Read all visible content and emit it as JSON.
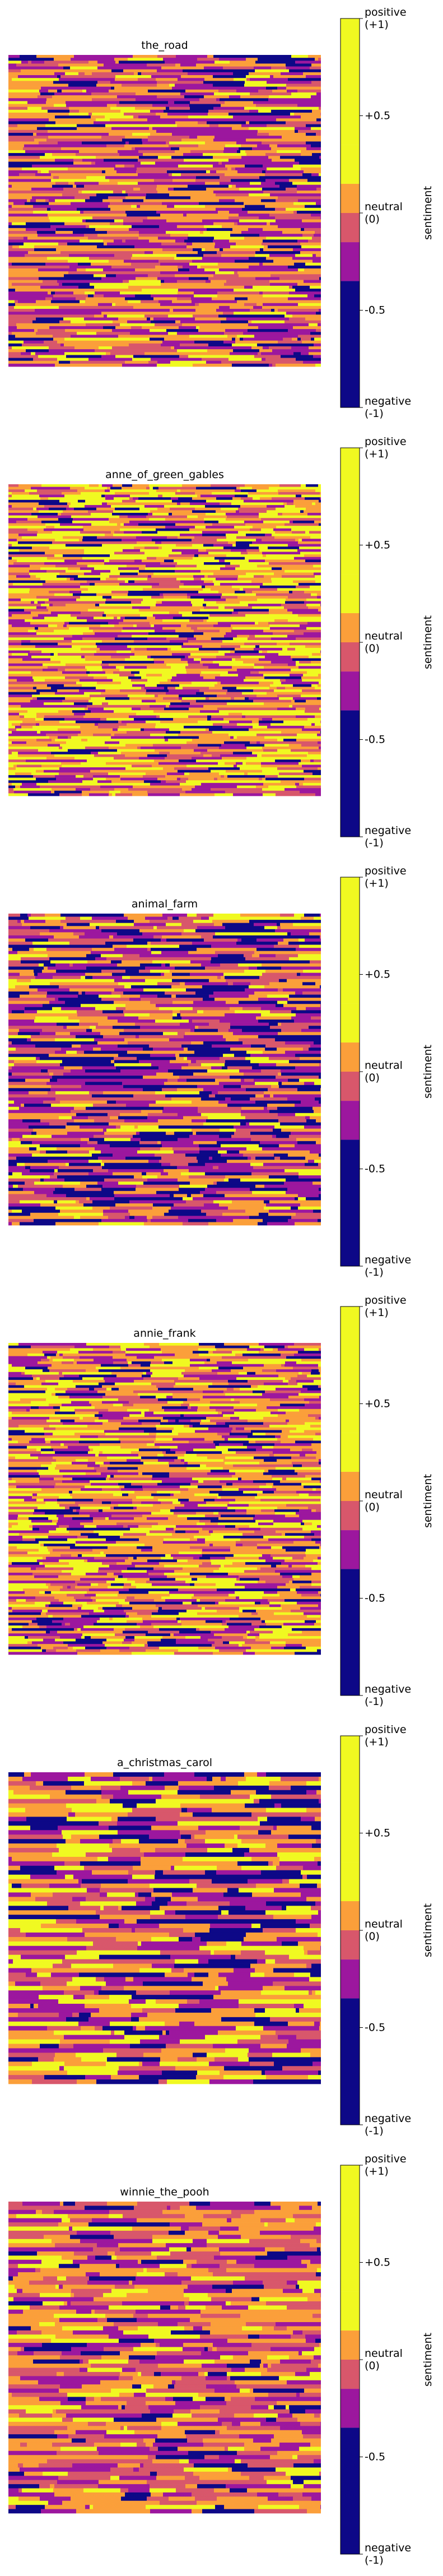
{
  "palette": {
    "negative": "#0d0887",
    "neg_mid": "#9c179e",
    "neutral_low": "#d8576b",
    "neutral_high": "#fb9f3a",
    "positive": "#f0f921"
  },
  "chart_data": [
    {
      "type": "heatmap",
      "title": "the_road",
      "colorbar_label": "sentiment",
      "colorbar_ticks": [
        "positive\n(+1)",
        "+0.5",
        "neutral\n(0)",
        "-0.5",
        "negative\n(-1)"
      ],
      "colorbar_bins": [
        -1,
        -0.35,
        -0.15,
        0.0,
        0.15,
        0.35,
        1
      ],
      "rows": 108,
      "seed": 11,
      "weights": [
        0.14,
        0.3,
        0.17,
        0.29,
        0.1
      ],
      "mean_run": 7
    },
    {
      "type": "heatmap",
      "title": "anne_of_green_gables",
      "colorbar_label": "sentiment",
      "colorbar_ticks": [
        "positive\n(+1)",
        "+0.5",
        "neutral\n(0)",
        "-0.5",
        "negative\n(-1)"
      ],
      "colorbar_bins": [
        -1,
        -0.35,
        -0.15,
        0.0,
        0.15,
        0.35,
        1
      ],
      "rows": 120,
      "seed": 23,
      "weights": [
        0.08,
        0.17,
        0.17,
        0.27,
        0.31
      ],
      "mean_run": 6
    },
    {
      "type": "heatmap",
      "title": "animal_farm",
      "colorbar_label": "sentiment",
      "colorbar_ticks": [
        "positive\n(+1)",
        "+0.5",
        "neutral\n(0)",
        "-0.5",
        "negative\n(-1)"
      ],
      "colorbar_bins": [
        -1,
        -0.35,
        -0.15,
        0.0,
        0.15,
        0.35,
        1
      ],
      "rows": 100,
      "seed": 37,
      "weights": [
        0.24,
        0.24,
        0.18,
        0.22,
        0.12
      ],
      "mean_run": 7
    },
    {
      "type": "heatmap",
      "title": "annie_frank",
      "colorbar_label": "sentiment",
      "colorbar_ticks": [
        "positive\n(+1)",
        "+0.5",
        "neutral\n(0)",
        "-0.5",
        "negative\n(-1)"
      ],
      "colorbar_bins": [
        -1,
        -0.35,
        -0.15,
        0.0,
        0.15,
        0.35,
        1
      ],
      "rows": 118,
      "seed": 41,
      "weights": [
        0.13,
        0.18,
        0.16,
        0.29,
        0.24
      ],
      "mean_run": 6
    },
    {
      "type": "heatmap",
      "title": "a_christmas_carol",
      "colorbar_label": "sentiment",
      "colorbar_ticks": [
        "positive\n(+1)",
        "+0.5",
        "neutral\n(0)",
        "-0.5",
        "negative\n(-1)"
      ],
      "colorbar_bins": [
        -1,
        -0.35,
        -0.15,
        0.0,
        0.15,
        0.35,
        1
      ],
      "rows": 70,
      "seed": 53,
      "weights": [
        0.18,
        0.2,
        0.17,
        0.25,
        0.2
      ],
      "mean_run": 9
    },
    {
      "type": "heatmap",
      "title": "winnie_the_pooh",
      "colorbar_label": "sentiment",
      "colorbar_ticks": [
        "positive\n(+1)",
        "+0.5",
        "neutral\n(0)",
        "-0.5",
        "negative\n(-1)"
      ],
      "colorbar_bins": [
        -1,
        -0.35,
        -0.15,
        0.0,
        0.15,
        0.35,
        1
      ],
      "rows": 75,
      "seed": 67,
      "weights": [
        0.07,
        0.24,
        0.25,
        0.32,
        0.12
      ],
      "mean_run": 8
    }
  ]
}
